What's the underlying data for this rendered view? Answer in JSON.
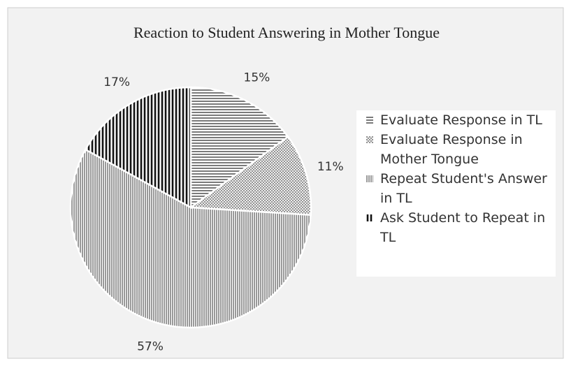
{
  "chart_data": {
    "type": "pie",
    "title": "Reaction to Student Answering in Mother Tongue",
    "categories": [
      "Evaluate Response in TL",
      "Evaluate Response in Mother Tongue",
      "Repeat Student's Answer in TL",
      "Ask Student to Repeat in TL"
    ],
    "values": [
      15,
      11,
      57,
      17
    ],
    "value_labels": [
      "15%",
      "11%",
      "57%",
      "17%"
    ],
    "patterns": [
      "horizontal",
      "dots",
      "vertical",
      "vertical-bold"
    ],
    "color": "#222222",
    "legend": "right"
  }
}
